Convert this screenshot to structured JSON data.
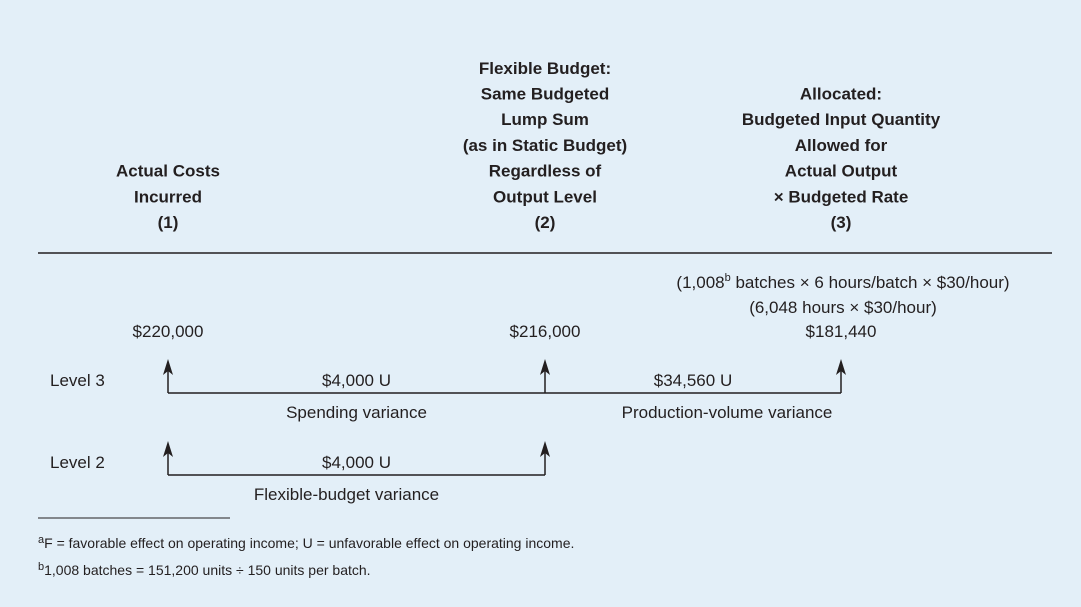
{
  "columns": [
    {
      "lines": [
        "Actual Costs",
        "Incurred"
      ],
      "number": "(1)",
      "amount": "$220,000"
    },
    {
      "lines": [
        "Flexible Budget:",
        "Same Budgeted",
        "Lump Sum",
        "(as in Static Budget)",
        "Regardless of",
        "Output Level"
      ],
      "number": "(2)",
      "amount": "$216,000"
    },
    {
      "lines": [
        "Allocated:",
        "Budgeted Input Quantity",
        "Allowed for",
        "Actual Output",
        "× Budgeted Rate"
      ],
      "number": "(3)",
      "amount": "$181,440"
    }
  ],
  "calculation": {
    "line1": {
      "before": "(1,008",
      "sup": "b",
      "after": " batches × 6 hours/batch × $30/hour)"
    },
    "line2": "(6,048 hours × $30/hour)"
  },
  "levels": [
    {
      "label": "Level 3",
      "variances": [
        {
          "amount": "$4,000 U",
          "name": "Spending variance"
        },
        {
          "amount": "$34,560 U",
          "name": "Production-volume variance"
        }
      ]
    },
    {
      "label": "Level 2",
      "variances": [
        {
          "amount": "$4,000 U",
          "name": "Flexible-budget variance"
        }
      ]
    }
  ],
  "footnotes": [
    {
      "mark": "a",
      "text": "F = favorable effect on operating income; U = unfavorable effect on operating income."
    },
    {
      "mark": "b",
      "text": "1,008 batches = 151,200 units ÷ 150 units per batch."
    }
  ]
}
